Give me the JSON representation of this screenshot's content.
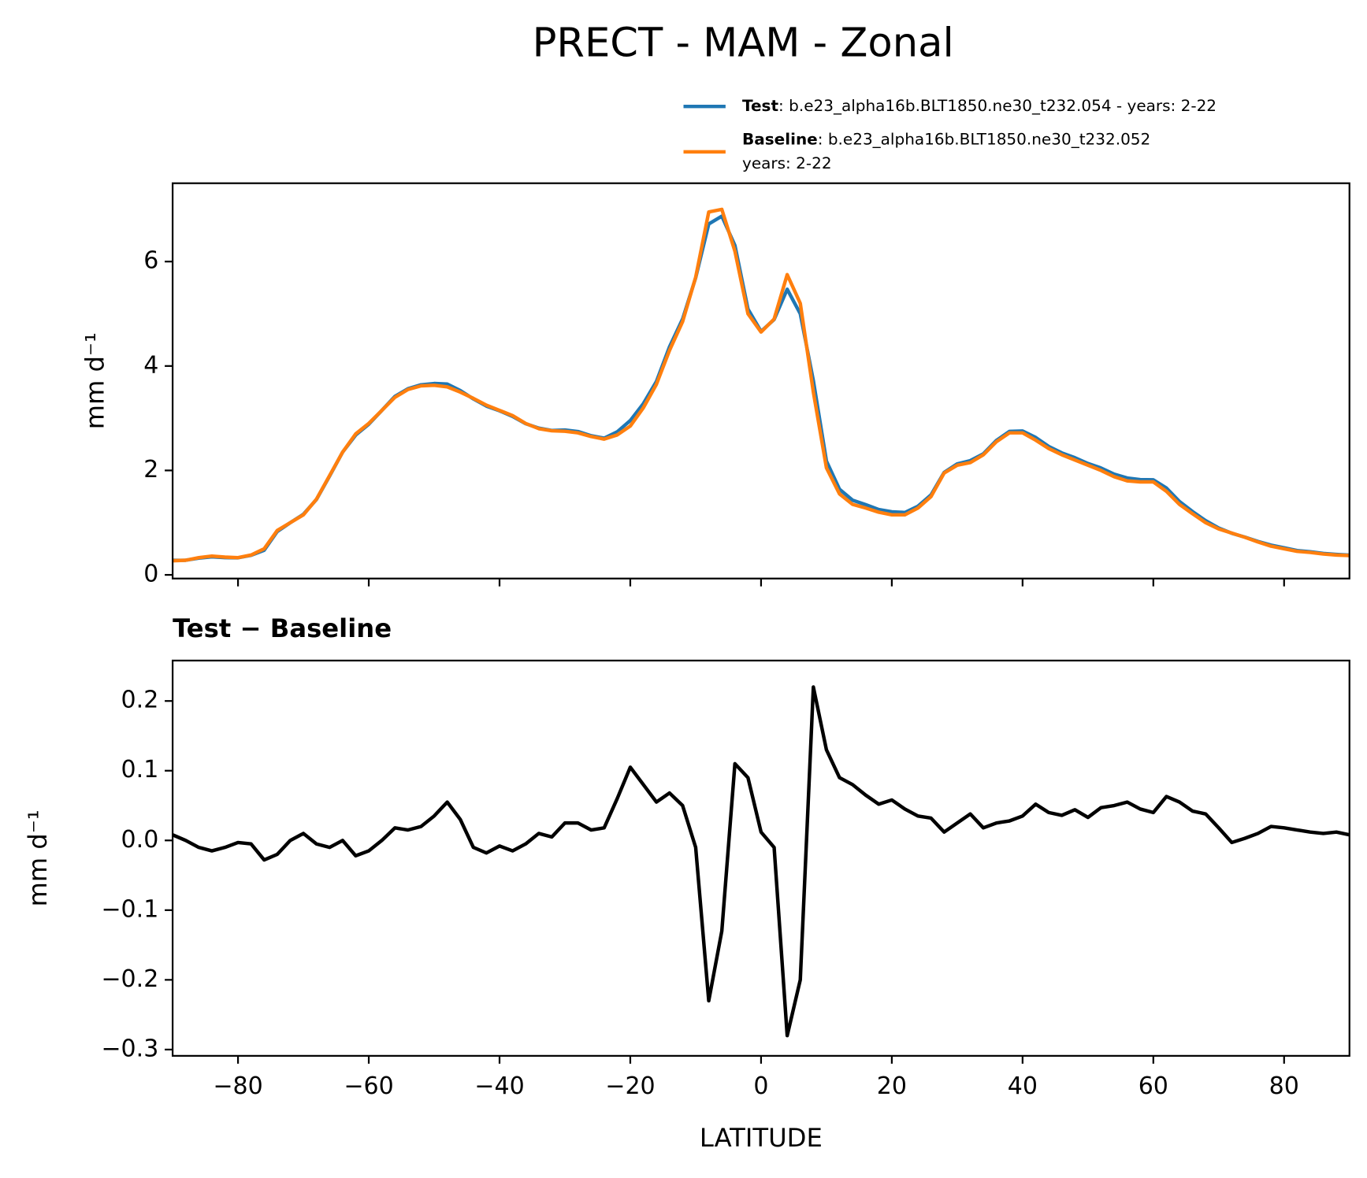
{
  "title": "PRECT - MAM - Zonal",
  "chart_data": [
    {
      "type": "line",
      "ylabel": "mm d⁻¹",
      "show_xtick_labels": false,
      "x": [
        -90,
        -88,
        -86,
        -84,
        -82,
        -80,
        -78,
        -76,
        -74,
        -72,
        -70,
        -68,
        -66,
        -64,
        -62,
        -60,
        -58,
        -56,
        -54,
        -52,
        -50,
        -48,
        -46,
        -44,
        -42,
        -40,
        -38,
        -36,
        -34,
        -32,
        -30,
        -28,
        -26,
        -24,
        -22,
        -20,
        -18,
        -16,
        -14,
        -12,
        -10,
        -8,
        -6,
        -4,
        -2,
        0,
        2,
        4,
        6,
        8,
        10,
        12,
        14,
        16,
        18,
        20,
        22,
        24,
        26,
        28,
        30,
        32,
        34,
        36,
        38,
        40,
        42,
        44,
        46,
        48,
        50,
        52,
        54,
        56,
        58,
        60,
        62,
        64,
        66,
        68,
        70,
        72,
        74,
        76,
        78,
        80,
        82,
        84,
        86,
        88,
        90
      ],
      "series": [
        {
          "name": "Test",
          "case_lines": [
            ": b.e23_alpha16b.BLT1850.ne30_t232.054 - years: 2-22"
          ],
          "color": "#1f77b4",
          "values": [
            0.278,
            0.28,
            0.32,
            0.345,
            0.33,
            0.327,
            0.375,
            0.472,
            0.83,
            1.0,
            1.16,
            1.445,
            1.89,
            2.35,
            2.678,
            2.885,
            3.15,
            3.418,
            3.565,
            3.64,
            3.665,
            3.655,
            3.53,
            3.37,
            3.232,
            3.142,
            3.035,
            2.895,
            2.81,
            2.765,
            2.775,
            2.745,
            2.665,
            2.618,
            2.74,
            2.955,
            3.28,
            3.705,
            4.368,
            4.9,
            5.69,
            6.72,
            6.87,
            6.31,
            5.09,
            4.662,
            4.89,
            5.47,
            5.0,
            3.72,
            2.18,
            1.64,
            1.43,
            1.345,
            1.252,
            1.208,
            1.195,
            1.315,
            1.532,
            1.962,
            2.125,
            2.188,
            2.318,
            2.575,
            2.748,
            2.755,
            2.632,
            2.46,
            2.336,
            2.244,
            2.133,
            2.047,
            1.93,
            1.855,
            1.825,
            1.82,
            1.663,
            1.405,
            1.212,
            1.038,
            0.898,
            0.797,
            0.723,
            0.64,
            0.57,
            0.518,
            0.465,
            0.442,
            0.41,
            0.392,
            0.378
          ]
        },
        {
          "name": "Baseline",
          "case_lines": [
            ": b.e23_alpha16b.BLT1850.ne30_t232.052",
            "years: 2-22"
          ],
          "color": "#ff7f0e",
          "values": [
            0.27,
            0.28,
            0.33,
            0.36,
            0.34,
            0.33,
            0.38,
            0.5,
            0.85,
            1.0,
            1.15,
            1.45,
            1.9,
            2.35,
            2.7,
            2.9,
            3.15,
            3.4,
            3.55,
            3.62,
            3.63,
            3.6,
            3.5,
            3.38,
            3.25,
            3.15,
            3.05,
            2.9,
            2.8,
            2.76,
            2.75,
            2.72,
            2.65,
            2.6,
            2.68,
            2.85,
            3.2,
            3.65,
            4.3,
            4.85,
            5.7,
            6.95,
            7.0,
            6.2,
            5.0,
            4.65,
            4.9,
            5.75,
            5.2,
            3.5,
            2.05,
            1.55,
            1.35,
            1.28,
            1.2,
            1.15,
            1.15,
            1.28,
            1.5,
            1.95,
            2.1,
            2.15,
            2.3,
            2.55,
            2.72,
            2.72,
            2.58,
            2.42,
            2.3,
            2.2,
            2.1,
            2.0,
            1.88,
            1.8,
            1.78,
            1.78,
            1.6,
            1.35,
            1.17,
            1.0,
            0.88,
            0.8,
            0.72,
            0.63,
            0.55,
            0.5,
            0.45,
            0.43,
            0.4,
            0.38,
            0.37
          ]
        }
      ],
      "xlim": [
        -90,
        90
      ],
      "xticks": [
        {
          "value": -80,
          "label": "−80"
        },
        {
          "value": -60,
          "label": "−60"
        },
        {
          "value": -40,
          "label": "−40"
        },
        {
          "value": -20,
          "label": "−20"
        },
        0,
        20,
        40,
        60,
        80
      ],
      "ylim": [
        -0.07,
        7.5
      ],
      "yticks": [
        0,
        2,
        4,
        6
      ]
    },
    {
      "type": "line",
      "title": "Test − Baseline",
      "ylabel": "mm d⁻¹",
      "xlabel": "LATITUDE",
      "show_xtick_labels": true,
      "x": [
        -90,
        -88,
        -86,
        -84,
        -82,
        -80,
        -78,
        -76,
        -74,
        -72,
        -70,
        -68,
        -66,
        -64,
        -62,
        -60,
        -58,
        -56,
        -54,
        -52,
        -50,
        -48,
        -46,
        -44,
        -42,
        -40,
        -38,
        -36,
        -34,
        -32,
        -30,
        -28,
        -26,
        -24,
        -22,
        -20,
        -18,
        -16,
        -14,
        -12,
        -10,
        -8,
        -6,
        -4,
        -2,
        0,
        2,
        4,
        6,
        8,
        10,
        12,
        14,
        16,
        18,
        20,
        22,
        24,
        26,
        28,
        30,
        32,
        34,
        36,
        38,
        40,
        42,
        44,
        46,
        48,
        50,
        52,
        54,
        56,
        58,
        60,
        62,
        64,
        66,
        68,
        70,
        72,
        74,
        76,
        78,
        80,
        82,
        84,
        86,
        88,
        90
      ],
      "series": [
        {
          "color": "#000000",
          "values": [
            0.008,
            0.0,
            -0.01,
            -0.015,
            -0.01,
            -0.003,
            -0.005,
            -0.028,
            -0.02,
            0.0,
            0.01,
            -0.005,
            -0.01,
            0.0,
            -0.022,
            -0.015,
            0.0,
            0.018,
            0.015,
            0.02,
            0.035,
            0.055,
            0.03,
            -0.01,
            -0.018,
            -0.008,
            -0.015,
            -0.005,
            0.01,
            0.005,
            0.025,
            0.025,
            0.015,
            0.018,
            0.06,
            0.105,
            0.08,
            0.055,
            0.068,
            0.05,
            -0.01,
            -0.23,
            -0.13,
            0.11,
            0.09,
            0.012,
            -0.01,
            -0.28,
            -0.2,
            0.22,
            0.13,
            0.09,
            0.08,
            0.065,
            0.052,
            0.058,
            0.045,
            0.035,
            0.032,
            0.012,
            0.025,
            0.038,
            0.018,
            0.025,
            0.028,
            0.035,
            0.052,
            0.04,
            0.036,
            0.044,
            0.033,
            0.047,
            0.05,
            0.055,
            0.045,
            0.04,
            0.063,
            0.055,
            0.042,
            0.038,
            0.018,
            -0.003,
            0.003,
            0.01,
            0.02,
            0.018,
            0.015,
            0.012,
            0.01,
            0.012,
            0.008
          ]
        }
      ],
      "xlim": [
        -90,
        90
      ],
      "xticks": [
        {
          "value": -80,
          "label": "−80"
        },
        {
          "value": -60,
          "label": "−60"
        },
        {
          "value": -40,
          "label": "−40"
        },
        {
          "value": -20,
          "label": "−20"
        },
        0,
        20,
        40,
        60,
        80
      ],
      "ylim": [
        -0.309,
        0.258
      ],
      "yticks": [
        {
          "value": -0.3,
          "label": "−0.3"
        },
        {
          "value": -0.2,
          "label": "−0.2"
        },
        {
          "value": -0.1,
          "label": "−0.1"
        },
        {
          "value": 0,
          "label": "0.0"
        },
        0.1,
        0.2
      ]
    }
  ]
}
